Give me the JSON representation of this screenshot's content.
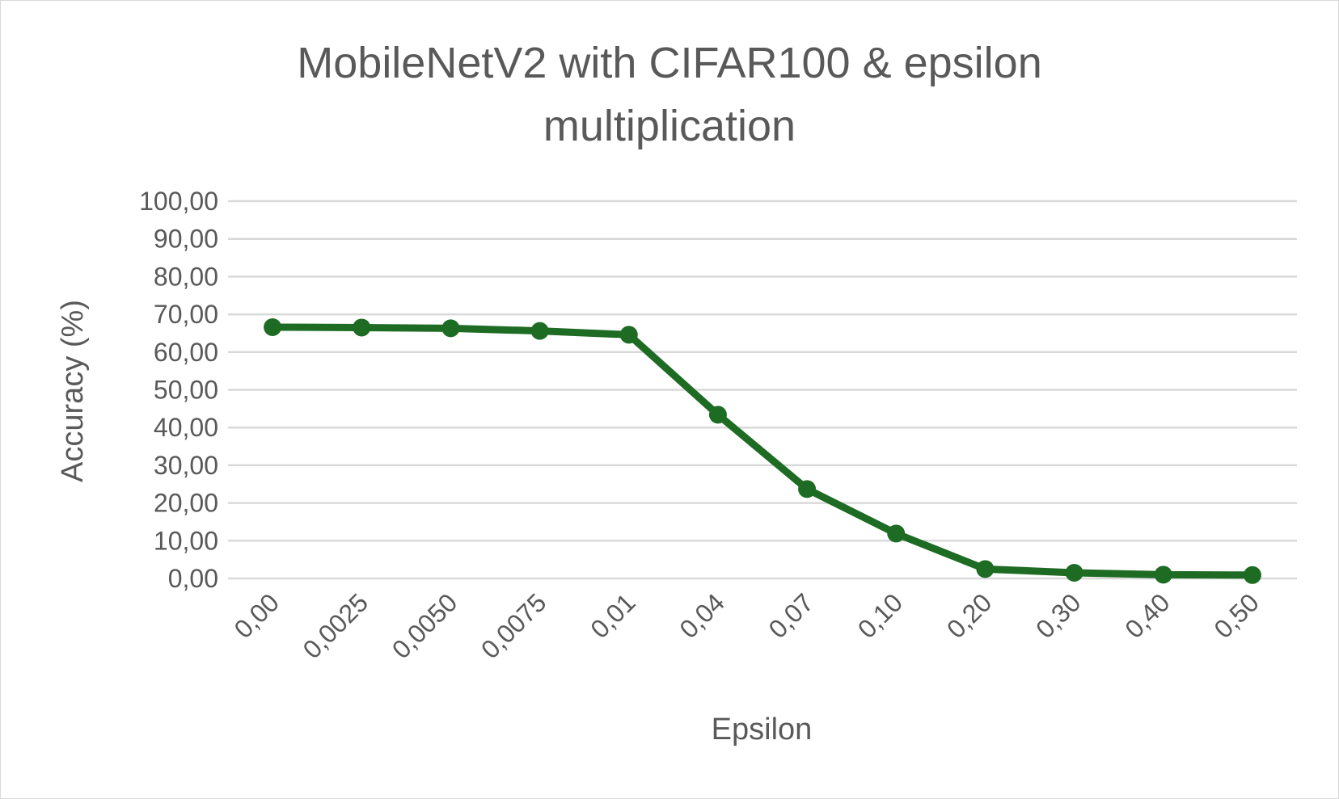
{
  "chart_data": {
    "type": "line",
    "title_line1": "MobileNetV2 with CIFAR100 & epsilon",
    "title_line2": "multiplication",
    "xlabel": "Epsilon",
    "ylabel": "Accuracy (%)",
    "categories": [
      "0,00",
      "0,0025",
      "0,0050",
      "0,0075",
      "0,01",
      "0,04",
      "0,07",
      "0,10",
      "0,20",
      "0,30",
      "0,40",
      "0,50"
    ],
    "series": [
      {
        "values": [
          66.6,
          66.5,
          66.3,
          65.6,
          64.6,
          43.4,
          23.7,
          11.9,
          2.5,
          1.5,
          1.0,
          0.9
        ]
      }
    ],
    "ylim": [
      0,
      100
    ],
    "yticks": [
      "0,00",
      "10,00",
      "20,00",
      "30,00",
      "40,00",
      "50,00",
      "60,00",
      "70,00",
      "80,00",
      "90,00",
      "100,00"
    ],
    "grid": true,
    "legend": "none",
    "line_color": "#1e6b24",
    "grid_color": "#d9d9d9",
    "text_color": "#595959"
  }
}
